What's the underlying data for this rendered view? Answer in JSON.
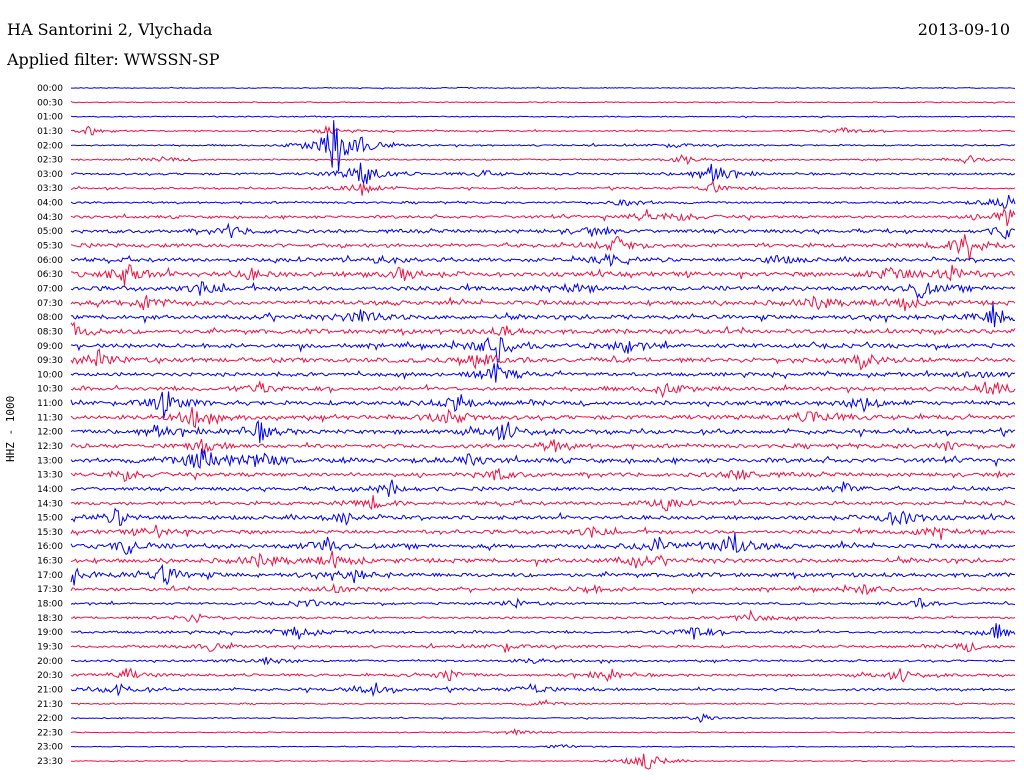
{
  "header": {
    "station": "HA Santorini 2, Vlychada",
    "filter": "Applied filter: WWSSN-SP",
    "date": "2013-09-10"
  },
  "chart_data": {
    "type": "line",
    "title": "HA Santorini 2, Vlychada",
    "subtitle": "Applied filter: WWSSN-SP",
    "date": "2013-09-10",
    "ylabel": "HHZ - 1000",
    "row_labels": [
      "00:00",
      "00:30",
      "01:00",
      "01:30",
      "02:00",
      "02:30",
      "03:00",
      "03:30",
      "04:00",
      "04:30",
      "05:00",
      "05:30",
      "06:00",
      "06:30",
      "07:00",
      "07:30",
      "08:00",
      "08:30",
      "09:00",
      "09:30",
      "10:00",
      "10:30",
      "11:00",
      "11:30",
      "12:00",
      "12:30",
      "13:00",
      "13:30",
      "14:00",
      "14:30",
      "15:00",
      "15:30",
      "16:00",
      "16:30",
      "17:00",
      "17:30",
      "18:00",
      "18:30",
      "19:00",
      "19:30",
      "20:00",
      "20:30",
      "21:00",
      "21:30",
      "22:00",
      "22:30",
      "23:00",
      "23:30"
    ],
    "series_colors": [
      "#0000ee",
      "#ee1144"
    ],
    "noise_level": [
      0.5,
      0.6,
      0.6,
      0.8,
      0.9,
      0.9,
      1.2,
      1.0,
      1.2,
      1.6,
      2.0,
      2.2,
      2.2,
      2.6,
      2.6,
      2.5,
      2.4,
      2.6,
      2.4,
      2.6,
      2.0,
      2.2,
      2.4,
      2.5,
      2.4,
      2.3,
      2.6,
      2.2,
      2.0,
      2.0,
      2.2,
      2.2,
      2.4,
      2.4,
      2.4,
      1.8,
      1.2,
      1.2,
      1.4,
      1.4,
      1.2,
      1.4,
      1.5,
      0.8,
      0.6,
      0.6,
      0.5,
      0.5
    ],
    "events": [
      [
        [
          0.41,
          0.3
        ]
      ],
      [],
      [],
      [
        [
          0.02,
          2.5
        ],
        [
          0.27,
          2.5
        ],
        [
          0.82,
          2.5
        ]
      ],
      [
        [
          0.28,
          18
        ],
        [
          0.31,
          3
        ],
        [
          0.64,
          2
        ]
      ],
      [
        [
          0.1,
          2
        ],
        [
          0.65,
          3
        ],
        [
          0.95,
          2.5
        ]
      ],
      [
        [
          0.31,
          10
        ],
        [
          0.68,
          9
        ],
        [
          0.44,
          2
        ]
      ],
      [
        [
          0.31,
          5
        ],
        [
          0.68,
          4
        ]
      ],
      [
        [
          0.59,
          3
        ],
        [
          0.99,
          6
        ]
      ],
      [
        [
          0.61,
          4
        ],
        [
          0.65,
          3
        ],
        [
          0.99,
          8
        ]
      ],
      [
        [
          0.17,
          4
        ],
        [
          0.55,
          3
        ],
        [
          0.99,
          4
        ]
      ],
      [
        [
          0.58,
          5
        ],
        [
          0.95,
          10
        ]
      ],
      [
        [
          0.33,
          3
        ],
        [
          0.57,
          3
        ],
        [
          0.75,
          3
        ]
      ],
      [
        [
          0.06,
          7
        ],
        [
          0.19,
          3
        ],
        [
          0.35,
          4
        ],
        [
          0.87,
          6
        ],
        [
          0.93,
          6
        ]
      ],
      [
        [
          0.14,
          4
        ],
        [
          0.53,
          4
        ],
        [
          0.9,
          6
        ]
      ],
      [
        [
          0.08,
          5
        ],
        [
          0.79,
          4
        ],
        [
          0.88,
          5
        ]
      ],
      [
        [
          0.31,
          6
        ],
        [
          0.98,
          9
        ]
      ],
      [
        [
          0.0,
          6
        ],
        [
          0.46,
          3
        ]
      ],
      [
        [
          0.45,
          10
        ],
        [
          0.59,
          4
        ]
      ],
      [
        [
          0.03,
          6
        ],
        [
          0.43,
          6
        ],
        [
          0.84,
          5
        ]
      ],
      [
        [
          0.45,
          7
        ],
        [
          0.96,
          4
        ]
      ],
      [
        [
          0.2,
          4
        ],
        [
          0.63,
          5
        ],
        [
          0.98,
          5
        ]
      ],
      [
        [
          0.1,
          8
        ],
        [
          0.41,
          5
        ],
        [
          0.84,
          5
        ]
      ],
      [
        [
          0.13,
          6
        ],
        [
          0.4,
          5
        ],
        [
          0.79,
          6
        ]
      ],
      [
        [
          0.09,
          5
        ],
        [
          0.2,
          6
        ],
        [
          0.46,
          6
        ]
      ],
      [
        [
          0.14,
          4
        ],
        [
          0.51,
          4
        ],
        [
          0.93,
          3
        ]
      ],
      [
        [
          0.14,
          10
        ],
        [
          0.2,
          7
        ],
        [
          0.42,
          4
        ]
      ],
      [
        [
          0.06,
          4
        ],
        [
          0.45,
          4
        ],
        [
          0.71,
          4
        ]
      ],
      [
        [
          0.34,
          5
        ],
        [
          0.82,
          4
        ]
      ],
      [
        [
          0.32,
          4
        ],
        [
          0.63,
          4
        ]
      ],
      [
        [
          0.05,
          5
        ],
        [
          0.29,
          4
        ],
        [
          0.88,
          8
        ]
      ],
      [
        [
          0.09,
          4
        ],
        [
          0.55,
          3
        ],
        [
          0.92,
          4
        ]
      ],
      [
        [
          0.06,
          5
        ],
        [
          0.27,
          6
        ],
        [
          0.62,
          6
        ],
        [
          0.7,
          9
        ]
      ],
      [
        [
          0.2,
          4
        ],
        [
          0.28,
          6
        ],
        [
          0.6,
          4
        ]
      ],
      [
        [
          0.0,
          6
        ],
        [
          0.1,
          6
        ],
        [
          0.3,
          4
        ]
      ],
      [
        [
          0.28,
          3
        ],
        [
          0.55,
          3
        ],
        [
          0.84,
          3
        ]
      ],
      [
        [
          0.25,
          3
        ],
        [
          0.47,
          3
        ],
        [
          0.9,
          3
        ]
      ],
      [
        [
          0.13,
          4
        ],
        [
          0.72,
          4
        ]
      ],
      [
        [
          0.24,
          4
        ],
        [
          0.66,
          5
        ],
        [
          0.98,
          5
        ]
      ],
      [
        [
          0.15,
          3
        ],
        [
          0.46,
          3
        ],
        [
          0.95,
          3
        ]
      ],
      [
        [
          0.21,
          3
        ],
        [
          0.49,
          2
        ]
      ],
      [
        [
          0.06,
          4
        ],
        [
          0.4,
          4
        ],
        [
          0.57,
          4
        ],
        [
          0.88,
          4
        ]
      ],
      [
        [
          0.05,
          4
        ],
        [
          0.32,
          4
        ],
        [
          0.49,
          4
        ]
      ],
      [
        [
          0.5,
          2
        ]
      ],
      [
        [
          0.67,
          2.5
        ]
      ],
      [
        [
          0.47,
          2
        ]
      ],
      [
        [
          0.52,
          2
        ]
      ],
      [
        [
          0.61,
          7
        ]
      ]
    ]
  }
}
